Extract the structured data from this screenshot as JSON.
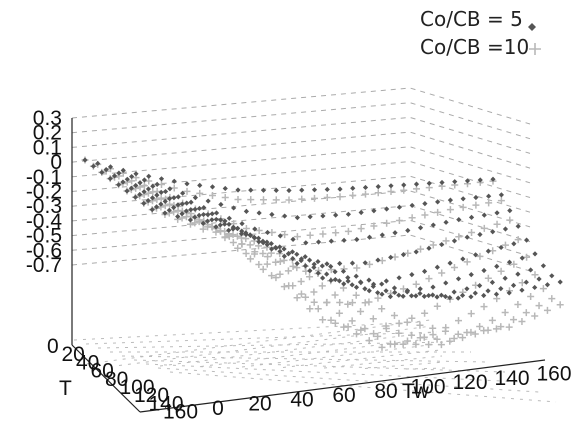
{
  "legend": {
    "series1_label": "Co/CB = 5",
    "series2_label": "Co/CB =10"
  },
  "chart_data": {
    "type": "scatter",
    "title": "",
    "zlabel": "",
    "ylabel": "T",
    "xlabel": "Tw",
    "z_ticks": [
      "0.3",
      "0.2",
      "0.1",
      "0",
      "-0.1",
      "-0.2",
      "-0.3",
      "-0.4",
      "-0.5",
      "-0.6",
      "-0.7"
    ],
    "y_ticks": [
      "0",
      "20",
      "40",
      "60",
      "80",
      "100",
      "120",
      "140",
      "160"
    ],
    "x_ticks": [
      "0",
      "20",
      "40",
      "60",
      "80",
      "100",
      "120",
      "140",
      "160"
    ],
    "xlim": [
      0,
      160
    ],
    "ylim": [
      0,
      160
    ],
    "zlim": [
      -0.7,
      0.3
    ],
    "grid": true,
    "legend_position": "top-right",
    "series": [
      {
        "name": "Co/CB = 5",
        "marker": "diamond",
        "color": "#555555",
        "x_values": [
          0,
          20,
          40,
          60,
          80,
          100,
          120,
          140,
          160
        ],
        "y_values": [
          0,
          20,
          40,
          60,
          80,
          100,
          120,
          140,
          160
        ],
        "z_grid": [
          [
            0.0,
            -0.06,
            -0.1,
            -0.12,
            -0.11,
            -0.09,
            -0.06,
            -0.03,
            0.0
          ],
          [
            0.02,
            -0.04,
            -0.12,
            -0.18,
            -0.2,
            -0.17,
            -0.12,
            -0.07,
            -0.03
          ],
          [
            0.04,
            -0.02,
            -0.12,
            -0.22,
            -0.28,
            -0.25,
            -0.19,
            -0.12,
            -0.06
          ],
          [
            0.06,
            0.0,
            -0.1,
            -0.24,
            -0.34,
            -0.32,
            -0.25,
            -0.16,
            -0.09
          ],
          [
            0.08,
            0.02,
            -0.08,
            -0.22,
            -0.36,
            -0.38,
            -0.3,
            -0.2,
            -0.11
          ],
          [
            0.1,
            0.04,
            -0.05,
            -0.18,
            -0.32,
            -0.38,
            -0.33,
            -0.23,
            -0.13
          ],
          [
            0.12,
            0.06,
            -0.02,
            -0.14,
            -0.27,
            -0.34,
            -0.32,
            -0.24,
            -0.14
          ],
          [
            0.14,
            0.08,
            0.01,
            -0.09,
            -0.2,
            -0.28,
            -0.28,
            -0.22,
            -0.14
          ],
          [
            0.16,
            0.1,
            0.04,
            -0.05,
            -0.14,
            -0.21,
            -0.23,
            -0.19,
            -0.12
          ]
        ]
      },
      {
        "name": "Co/CB =10",
        "marker": "plus",
        "color": "#b8b8b8",
        "x_values": [
          0,
          20,
          40,
          60,
          80,
          100,
          120,
          140,
          160
        ],
        "y_values": [
          0,
          20,
          40,
          60,
          80,
          100,
          120,
          140,
          160
        ],
        "z_grid": [
          [
            0.0,
            -0.08,
            -0.14,
            -0.17,
            -0.16,
            -0.13,
            -0.09,
            -0.05,
            -0.01
          ],
          [
            0.02,
            -0.07,
            -0.18,
            -0.27,
            -0.3,
            -0.26,
            -0.19,
            -0.12,
            -0.06
          ],
          [
            0.04,
            -0.05,
            -0.19,
            -0.34,
            -0.43,
            -0.4,
            -0.31,
            -0.21,
            -0.11
          ],
          [
            0.06,
            -0.03,
            -0.17,
            -0.38,
            -0.54,
            -0.53,
            -0.42,
            -0.29,
            -0.16
          ],
          [
            0.08,
            -0.01,
            -0.14,
            -0.36,
            -0.58,
            -0.64,
            -0.52,
            -0.36,
            -0.2
          ],
          [
            0.1,
            0.01,
            -0.1,
            -0.3,
            -0.53,
            -0.66,
            -0.58,
            -0.42,
            -0.24
          ],
          [
            0.12,
            0.03,
            -0.06,
            -0.23,
            -0.44,
            -0.59,
            -0.58,
            -0.44,
            -0.26
          ],
          [
            0.14,
            0.05,
            -0.02,
            -0.16,
            -0.34,
            -0.48,
            -0.51,
            -0.42,
            -0.26
          ],
          [
            0.16,
            0.07,
            0.02,
            -0.1,
            -0.24,
            -0.37,
            -0.42,
            -0.37,
            -0.24
          ]
        ]
      }
    ]
  }
}
